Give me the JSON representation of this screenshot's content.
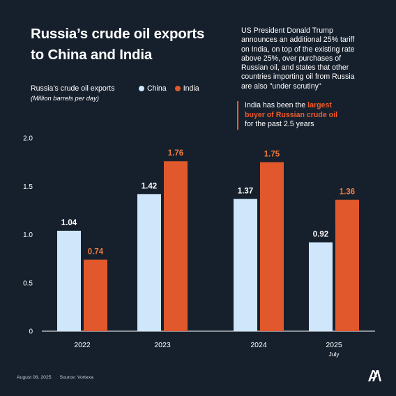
{
  "header": {
    "title_lines": [
      "Russia’s crude oil exports",
      "to China and India"
    ]
  },
  "note": {
    "lines": [
      "US President Donald Trump",
      "announces an additional 25% tariff",
      "on India, on top of the existing rate",
      "above 25%, over purchases of",
      "Russian oil, and states that other",
      "countries importing oil from Russia",
      "are also \"under scrutiny\""
    ]
  },
  "callout": {
    "line1_pre": "India has been the ",
    "line1_hl": "largest",
    "line2_hl": "buyer of Russian crude oil",
    "line3": "for the past 2.5 years"
  },
  "footer": {
    "date": "August 08, 2025",
    "source": "Source: Vortexa"
  },
  "chart_data": {
    "type": "bar",
    "ylabel": "Russia’s crude oil exports",
    "ylabel_sub": "(Million barrels per day)",
    "categories": [
      "2022",
      "2023",
      "2024",
      "2025"
    ],
    "category_sublabels": [
      "",
      "",
      "",
      "July"
    ],
    "series": [
      {
        "name": "China",
        "values": [
          1.04,
          1.42,
          1.37,
          0.92
        ],
        "labels": [
          "1.04",
          "1.42",
          "1.37",
          "0.92"
        ]
      },
      {
        "name": "India",
        "values": [
          0.74,
          1.76,
          1.75,
          1.36
        ],
        "labels": [
          "0.74",
          "1.76",
          "1.75",
          "1.36"
        ]
      }
    ],
    "yticks": [
      "0",
      "0.5",
      "1.0",
      "1.5",
      "2.0"
    ],
    "ylim": [
      0,
      2.0
    ],
    "colors": {
      "China": "#cfe6fb",
      "India": "#e0582c"
    },
    "grid": false,
    "legend": "top"
  }
}
